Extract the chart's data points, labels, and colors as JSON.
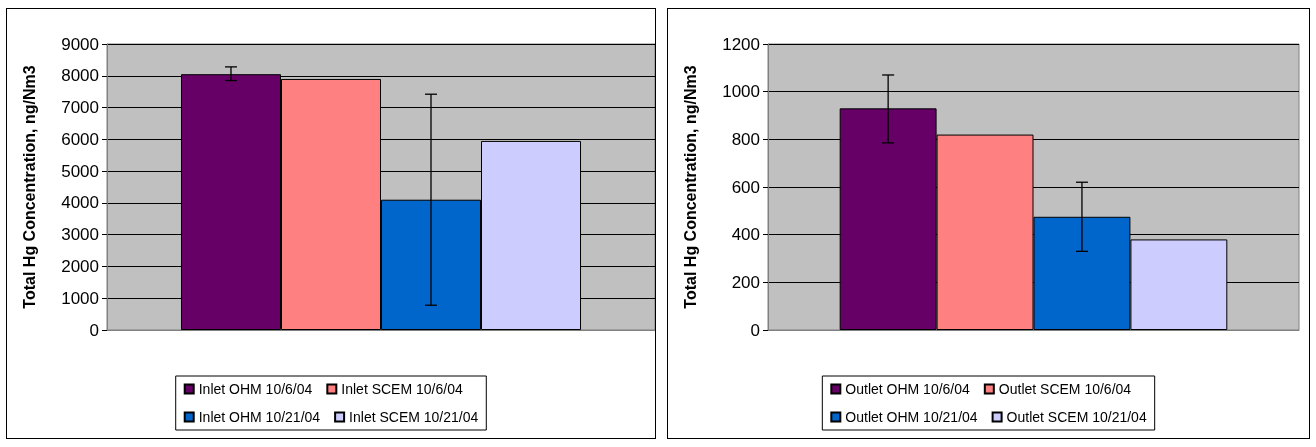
{
  "chart_data": [
    {
      "type": "bar",
      "ylabel": "Total Hg Concentration, ng/Nm3",
      "categories": [
        null
      ],
      "ylim": [
        0,
        9000
      ],
      "yticks": [
        0,
        1000,
        2000,
        3000,
        4000,
        5000,
        6000,
        7000,
        8000,
        9000
      ],
      "grid": "y",
      "legend": "bottom",
      "series": [
        {
          "name": "Inlet OHM 10/6/04",
          "color": "#660066",
          "values": [
            8050
          ],
          "errors": [
            [
              7850,
              8280
            ]
          ]
        },
        {
          "name": "Inlet SCEM 10/6/04",
          "color": "#ff8080",
          "values": [
            7900
          ]
        },
        {
          "name": "Inlet OHM 10/21/04",
          "color": "#0066cc",
          "values": [
            4100
          ],
          "errors": [
            [
              780,
              7420
            ]
          ]
        },
        {
          "name": "Inlet SCEM 10/21/04",
          "color": "#ccccff",
          "values": [
            5950
          ]
        }
      ]
    },
    {
      "type": "bar",
      "ylabel": "Total Hg Concentration, ng/Nm3",
      "categories": [
        null
      ],
      "ylim": [
        0,
        1200
      ],
      "yticks": [
        0,
        200,
        400,
        600,
        800,
        1000,
        1200
      ],
      "grid": "y",
      "legend": "bottom",
      "series": [
        {
          "name": "Outlet OHM 10/6/04",
          "color": "#660066",
          "values": [
            930
          ],
          "errors": [
            [
              785,
              1070
            ]
          ]
        },
        {
          "name": "Outlet SCEM 10/6/04",
          "color": "#ff8080",
          "values": [
            820
          ]
        },
        {
          "name": "Outlet OHM 10/21/04",
          "color": "#0066cc",
          "values": [
            475
          ],
          "errors": [
            [
              330,
              620
            ]
          ]
        },
        {
          "name": "Outlet SCEM 10/21/04",
          "color": "#ccccff",
          "values": [
            380
          ]
        }
      ]
    }
  ]
}
